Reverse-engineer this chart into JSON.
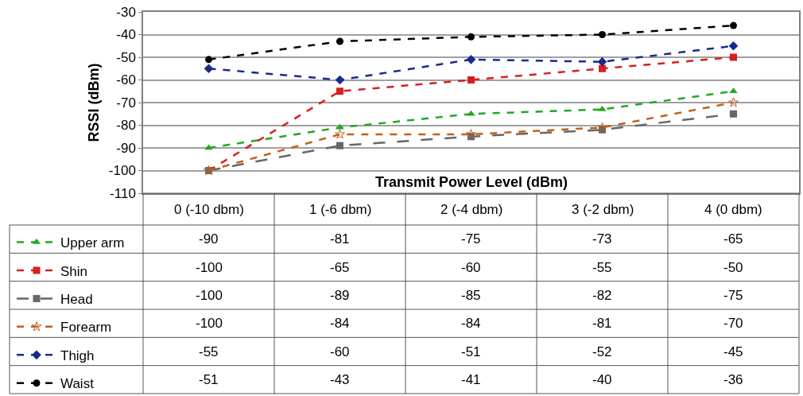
{
  "chart_data": {
    "type": "line",
    "xlabel": "Transmit Power Level (dBm)",
    "ylabel": "RSSI (dBm)",
    "categories": [
      "0 (-10 dbm)",
      "1 (-6 dbm)",
      "2 (-4 dbm)",
      "3 (-2 dbm)",
      "4 (0 dbm)"
    ],
    "series": [
      {
        "name": "Upper arm",
        "color": "#22a822",
        "marker": "triangle",
        "line_style": "dashed",
        "values": [
          -90,
          -81,
          -75,
          -73,
          -65
        ]
      },
      {
        "name": "Shin",
        "color": "#d62020",
        "marker": "square",
        "line_style": "dashed",
        "values": [
          -100,
          -65,
          -60,
          -55,
          -50
        ]
      },
      {
        "name": "Head",
        "color": "#666666",
        "marker": "square",
        "line_style": "longdash",
        "values": [
          -100,
          -89,
          -85,
          -82,
          -75
        ]
      },
      {
        "name": "Forearm",
        "color": "#c0601c",
        "marker": "star",
        "line_style": "dashed",
        "values": [
          -100,
          -84,
          -84,
          -81,
          -70
        ]
      },
      {
        "name": "Thigh",
        "color": "#1a2a8a",
        "marker": "diamond",
        "line_style": "dashed",
        "values": [
          -55,
          -60,
          -51,
          -52,
          -45
        ]
      },
      {
        "name": "Waist",
        "color": "#000000",
        "marker": "circle",
        "line_style": "dashed",
        "values": [
          -51,
          -43,
          -41,
          -40,
          -36
        ]
      }
    ],
    "ylim": [
      -110,
      -30
    ],
    "yticks": [
      -110,
      -100,
      -90,
      -80,
      -70,
      -60,
      -50,
      -40,
      -30
    ],
    "grid": "y",
    "legend": "bottom left",
    "tick_labels": "y",
    "data_labels": true
  }
}
